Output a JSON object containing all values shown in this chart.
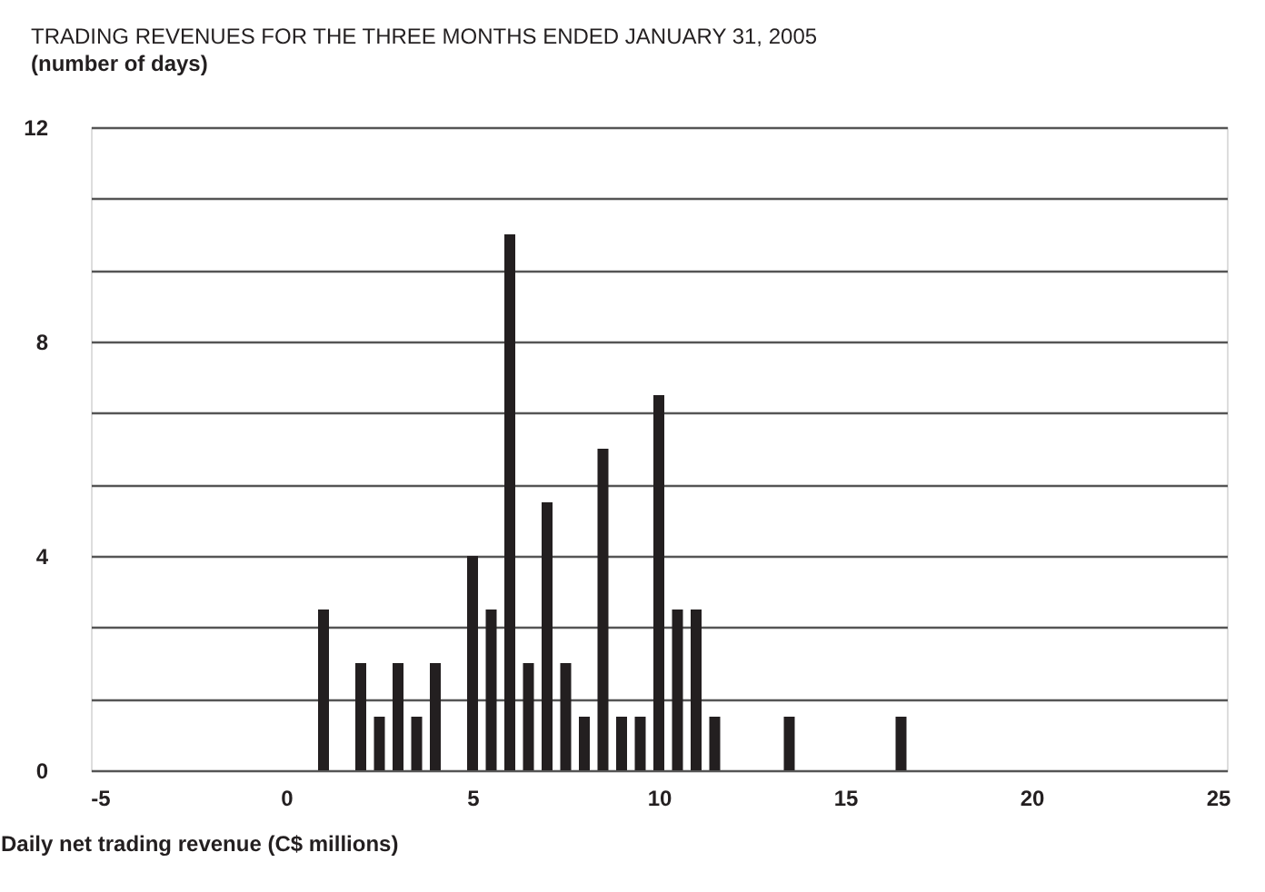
{
  "chart_data": {
    "type": "bar",
    "title": "TRADING REVENUES FOR THE THREE MONTHS ENDED JANUARY 31, 2005",
    "subtitle": "(number of days)",
    "xlabel": "Daily net trading revenue (C$ millions)",
    "x": [
      1,
      2,
      2.5,
      3,
      3.5,
      4,
      5,
      5.5,
      6,
      6.5,
      7,
      7.5,
      8,
      8.5,
      9,
      9.5,
      10,
      10.5,
      11,
      11.5,
      13.5,
      16.5
    ],
    "values": [
      3,
      2,
      1,
      2,
      1,
      2,
      4,
      3,
      10,
      2,
      5,
      2,
      1,
      6,
      1,
      1,
      7,
      3,
      3,
      1,
      1,
      1
    ],
    "color": "#231f20",
    "xlim": [
      -5,
      25
    ],
    "xticks": [
      -5,
      0,
      5,
      10,
      15,
      20,
      25
    ],
    "ylim": [
      0,
      12
    ],
    "yticks": [
      0,
      {
        "value": 1.333,
        "label": null
      },
      {
        "value": 2.667,
        "label": null
      },
      4,
      {
        "value": 5.333,
        "label": null
      },
      {
        "value": 6.667,
        "label": null
      },
      8,
      {
        "value": 9.333,
        "label": null
      },
      {
        "value": 10.667,
        "label": null
      },
      12
    ],
    "grid": "y"
  }
}
